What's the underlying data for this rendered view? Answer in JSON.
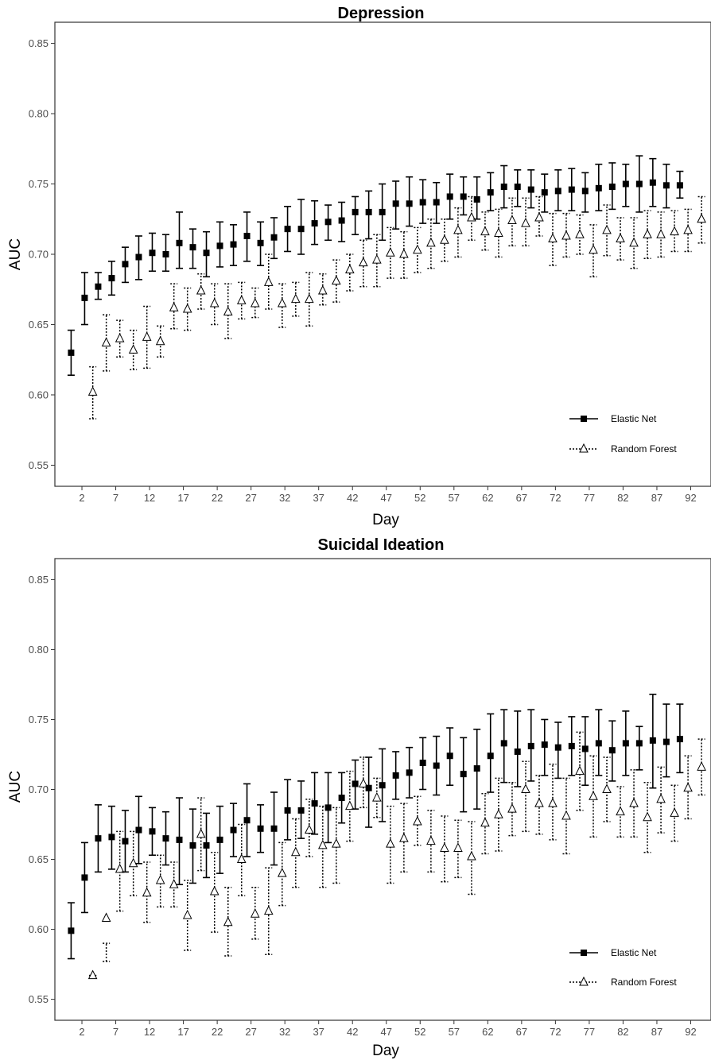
{
  "chart_data": [
    {
      "type": "scatter",
      "title": "Depression",
      "xlabel": "Day",
      "ylabel": "AUC",
      "xlim": [
        -2,
        95
      ],
      "ylim": [
        0.535,
        0.865
      ],
      "x_ticks": [
        2,
        7,
        12,
        17,
        22,
        27,
        32,
        37,
        42,
        47,
        52,
        57,
        62,
        67,
        72,
        77,
        82,
        87,
        92
      ],
      "y_ticks": [
        0.55,
        0.6,
        0.65,
        0.7,
        0.75,
        0.8,
        0.85
      ],
      "y_tick_labels": [
        "0.55",
        "0.60",
        "0.65",
        "0.70",
        "0.75",
        "0.80",
        "0.85"
      ],
      "grid": false,
      "legend_position": "bottom-right",
      "series": [
        {
          "name": "Elastic Net",
          "marker": "filled-square",
          "line": "solid",
          "x": [
            2,
            4,
            6,
            8,
            10,
            12,
            14,
            16,
            18,
            20,
            22,
            24,
            26,
            28,
            30,
            32,
            34,
            36,
            38,
            40,
            42,
            44,
            46,
            48,
            50,
            52,
            54,
            56,
            58,
            60,
            62,
            64,
            66,
            68,
            70,
            72,
            74,
            76,
            78,
            80,
            82,
            84,
            86,
            88,
            90,
            92
          ],
          "y": [
            0.63,
            0.669,
            0.677,
            0.683,
            0.693,
            0.698,
            0.701,
            0.7,
            0.708,
            0.705,
            0.701,
            0.706,
            0.707,
            0.713,
            0.708,
            0.712,
            0.718,
            0.718,
            0.722,
            0.723,
            0.724,
            0.73,
            0.73,
            0.73,
            0.736,
            0.736,
            0.737,
            0.737,
            0.741,
            0.741,
            0.739,
            0.744,
            0.748,
            0.748,
            0.746,
            0.744,
            0.745,
            0.746,
            0.745,
            0.747,
            0.748,
            0.75,
            0.75,
            0.751,
            0.749,
            0.749
          ],
          "lower": [
            0.614,
            0.65,
            0.668,
            0.671,
            0.68,
            0.682,
            0.688,
            0.688,
            0.69,
            0.69,
            0.684,
            0.691,
            0.692,
            0.695,
            0.692,
            0.697,
            0.702,
            0.7,
            0.707,
            0.71,
            0.709,
            0.714,
            0.711,
            0.71,
            0.718,
            0.72,
            0.722,
            0.722,
            0.725,
            0.728,
            0.725,
            0.731,
            0.733,
            0.734,
            0.733,
            0.73,
            0.731,
            0.731,
            0.73,
            0.731,
            0.732,
            0.734,
            0.73,
            0.734,
            0.733,
            0.74
          ],
          "upper": [
            0.646,
            0.687,
            0.687,
            0.695,
            0.705,
            0.713,
            0.715,
            0.714,
            0.73,
            0.718,
            0.716,
            0.723,
            0.721,
            0.73,
            0.723,
            0.726,
            0.734,
            0.739,
            0.738,
            0.735,
            0.737,
            0.741,
            0.745,
            0.75,
            0.752,
            0.755,
            0.753,
            0.751,
            0.757,
            0.755,
            0.755,
            0.758,
            0.763,
            0.76,
            0.76,
            0.757,
            0.76,
            0.761,
            0.758,
            0.764,
            0.765,
            0.764,
            0.77,
            0.768,
            0.764,
            0.759
          ]
        },
        {
          "name": "Random Forest",
          "marker": "open-triangle",
          "line": "dotted",
          "x": [
            2,
            4,
            6,
            8,
            10,
            12,
            14,
            16,
            18,
            20,
            22,
            24,
            26,
            28,
            30,
            32,
            34,
            36,
            38,
            40,
            42,
            44,
            46,
            48,
            50,
            52,
            54,
            56,
            58,
            60,
            62,
            64,
            66,
            68,
            70,
            72,
            74,
            76,
            78,
            80,
            82,
            84,
            86,
            88,
            90,
            92
          ],
          "y": [
            0.602,
            0.637,
            0.64,
            0.632,
            0.641,
            0.638,
            0.662,
            0.661,
            0.674,
            0.665,
            0.659,
            0.667,
            0.665,
            0.68,
            0.665,
            0.668,
            0.668,
            0.674,
            0.681,
            0.689,
            0.694,
            0.696,
            0.701,
            0.7,
            0.703,
            0.708,
            0.71,
            0.717,
            0.726,
            0.716,
            0.715,
            0.724,
            0.722,
            0.726,
            0.711,
            0.713,
            0.714,
            0.703,
            0.717,
            0.711,
            0.708,
            0.714,
            0.714,
            0.716,
            0.717,
            0.725
          ],
          "lower": [
            0.583,
            0.617,
            0.627,
            0.618,
            0.619,
            0.627,
            0.647,
            0.646,
            0.661,
            0.65,
            0.64,
            0.654,
            0.655,
            0.661,
            0.648,
            0.656,
            0.649,
            0.664,
            0.666,
            0.674,
            0.677,
            0.677,
            0.683,
            0.683,
            0.687,
            0.69,
            0.695,
            0.698,
            0.71,
            0.703,
            0.698,
            0.706,
            0.706,
            0.713,
            0.692,
            0.698,
            0.7,
            0.684,
            0.699,
            0.696,
            0.69,
            0.697,
            0.698,
            0.702,
            0.702,
            0.708
          ],
          "upper": [
            0.62,
            0.657,
            0.653,
            0.646,
            0.663,
            0.649,
            0.679,
            0.676,
            0.686,
            0.679,
            0.679,
            0.68,
            0.676,
            0.7,
            0.679,
            0.68,
            0.687,
            0.686,
            0.696,
            0.7,
            0.71,
            0.714,
            0.719,
            0.716,
            0.719,
            0.725,
            0.725,
            0.733,
            0.741,
            0.73,
            0.732,
            0.74,
            0.74,
            0.741,
            0.729,
            0.729,
            0.728,
            0.721,
            0.735,
            0.726,
            0.726,
            0.731,
            0.73,
            0.731,
            0.732,
            0.741
          ]
        }
      ]
    },
    {
      "type": "scatter",
      "title": "Suicidal Ideation",
      "xlabel": "Day",
      "ylabel": "AUC",
      "xlim": [
        -2,
        95
      ],
      "ylim": [
        0.535,
        0.865
      ],
      "x_ticks": [
        2,
        7,
        12,
        17,
        22,
        27,
        32,
        37,
        42,
        47,
        52,
        57,
        62,
        67,
        72,
        77,
        82,
        87,
        92
      ],
      "y_ticks": [
        0.55,
        0.6,
        0.65,
        0.7,
        0.75,
        0.8,
        0.85
      ],
      "y_tick_labels": [
        "0.55",
        "0.60",
        "0.65",
        "0.70",
        "0.75",
        "0.80",
        "0.85"
      ],
      "grid": false,
      "legend_position": "bottom-right",
      "series": [
        {
          "name": "Elastic Net",
          "marker": "filled-square",
          "line": "solid",
          "x": [
            2,
            4,
            6,
            8,
            10,
            12,
            14,
            16,
            18,
            20,
            22,
            24,
            26,
            28,
            30,
            32,
            34,
            36,
            38,
            40,
            42,
            44,
            46,
            48,
            50,
            52,
            54,
            56,
            58,
            60,
            62,
            64,
            66,
            68,
            70,
            72,
            74,
            76,
            78,
            80,
            82,
            84,
            86,
            88,
            90,
            92
          ],
          "y": [
            0.599,
            0.637,
            0.665,
            0.666,
            0.663,
            0.671,
            0.67,
            0.665,
            0.664,
            0.66,
            0.66,
            0.664,
            0.671,
            0.678,
            0.672,
            0.672,
            0.685,
            0.685,
            0.69,
            0.687,
            0.694,
            0.704,
            0.701,
            0.703,
            0.71,
            0.712,
            0.719,
            0.717,
            0.724,
            0.711,
            0.715,
            0.724,
            0.733,
            0.727,
            0.731,
            0.732,
            0.73,
            0.731,
            0.729,
            0.733,
            0.728,
            0.733,
            0.733,
            0.735,
            0.734,
            0.736
          ],
          "lower": [
            0.579,
            0.612,
            0.641,
            0.643,
            0.641,
            0.647,
            0.653,
            0.646,
            0.632,
            0.633,
            0.637,
            0.64,
            0.652,
            0.652,
            0.655,
            0.646,
            0.664,
            0.665,
            0.668,
            0.662,
            0.676,
            0.686,
            0.673,
            0.677,
            0.693,
            0.694,
            0.7,
            0.696,
            0.703,
            0.684,
            0.686,
            0.698,
            0.705,
            0.702,
            0.706,
            0.71,
            0.708,
            0.71,
            0.703,
            0.71,
            0.706,
            0.71,
            0.714,
            0.701,
            0.709,
            0.712
          ],
          "upper": [
            0.619,
            0.662,
            0.689,
            0.688,
            0.685,
            0.695,
            0.687,
            0.684,
            0.694,
            0.686,
            0.683,
            0.688,
            0.69,
            0.704,
            0.689,
            0.698,
            0.707,
            0.706,
            0.712,
            0.712,
            0.712,
            0.721,
            0.723,
            0.729,
            0.727,
            0.73,
            0.737,
            0.738,
            0.744,
            0.737,
            0.743,
            0.754,
            0.757,
            0.756,
            0.757,
            0.75,
            0.748,
            0.752,
            0.752,
            0.757,
            0.749,
            0.756,
            0.745,
            0.768,
            0.761,
            0.761
          ]
        },
        {
          "name": "Random Forest",
          "marker": "open-triangle",
          "line": "dotted",
          "x": [
            2,
            4,
            6,
            8,
            10,
            12,
            14,
            16,
            18,
            20,
            22,
            24,
            26,
            28,
            30,
            32,
            34,
            36,
            38,
            40,
            42,
            44,
            46,
            48,
            50,
            52,
            54,
            56,
            58,
            60,
            62,
            64,
            66,
            68,
            70,
            72,
            74,
            76,
            78,
            80,
            82,
            84,
            86,
            88,
            90,
            92
          ],
          "y": [
            0.567,
            0.608,
            0.643,
            0.647,
            0.626,
            0.635,
            0.632,
            0.61,
            0.668,
            0.627,
            0.605,
            0.65,
            0.611,
            0.613,
            0.64,
            0.655,
            0.671,
            0.66,
            0.661,
            0.688,
            0.704,
            0.694,
            0.661,
            0.665,
            0.677,
            0.663,
            0.658,
            0.658,
            0.652,
            0.676,
            0.682,
            0.686,
            0.7,
            0.69,
            0.69,
            0.681,
            0.713,
            0.695,
            0.7,
            0.684,
            0.69,
            0.68,
            0.693,
            0.683,
            0.701,
            0.716
          ],
          "lower": [
            0.567,
            0.577,
            0.613,
            0.624,
            0.605,
            0.616,
            0.616,
            0.585,
            0.642,
            0.598,
            0.581,
            0.624,
            0.593,
            0.582,
            0.617,
            0.63,
            0.652,
            0.63,
            0.633,
            0.663,
            0.687,
            0.68,
            0.633,
            0.641,
            0.66,
            0.641,
            0.634,
            0.637,
            0.625,
            0.654,
            0.656,
            0.667,
            0.67,
            0.668,
            0.664,
            0.654,
            0.685,
            0.666,
            0.677,
            0.666,
            0.666,
            0.655,
            0.669,
            0.663,
            0.679,
            0.696
          ],
          "upper": [
            0.567,
            0.59,
            0.67,
            0.67,
            0.648,
            0.653,
            0.648,
            0.635,
            0.694,
            0.655,
            0.63,
            0.675,
            0.63,
            0.644,
            0.662,
            0.679,
            0.693,
            0.688,
            0.687,
            0.713,
            0.723,
            0.708,
            0.688,
            0.69,
            0.695,
            0.685,
            0.681,
            0.678,
            0.677,
            0.697,
            0.708,
            0.705,
            0.72,
            0.71,
            0.718,
            0.708,
            0.741,
            0.724,
            0.723,
            0.702,
            0.714,
            0.705,
            0.716,
            0.703,
            0.724,
            0.736
          ]
        }
      ]
    }
  ]
}
